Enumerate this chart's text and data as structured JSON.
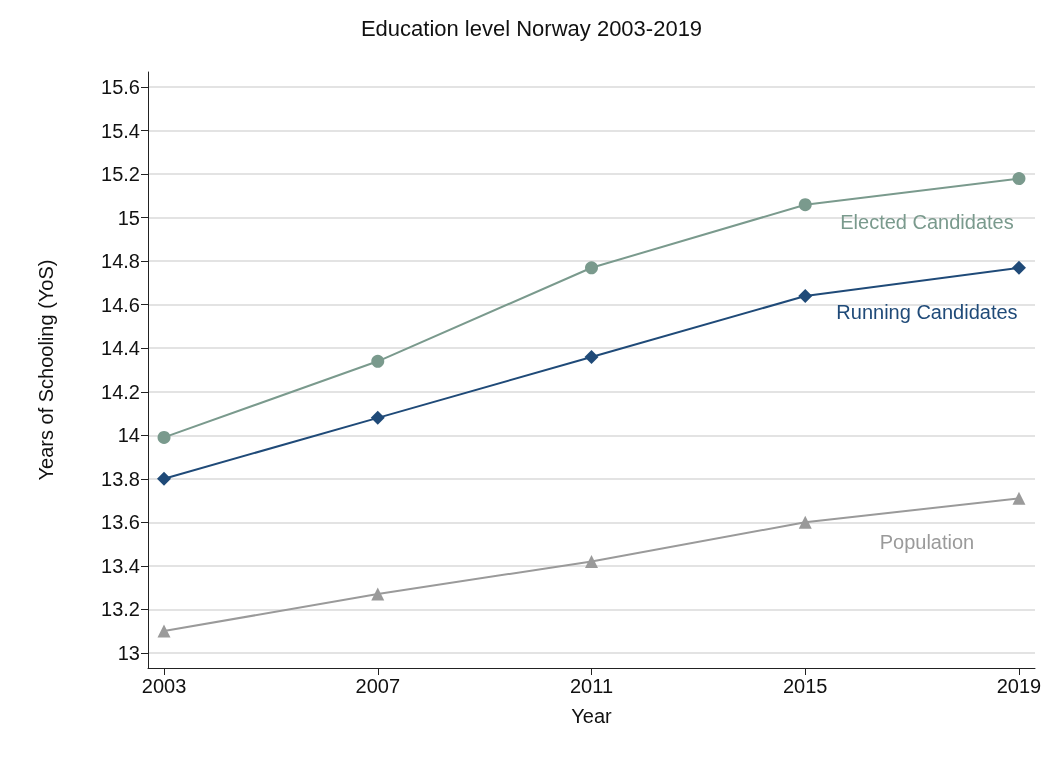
{
  "chart_data": {
    "type": "line",
    "title": "Education level Norway 2003-2019",
    "xlabel": "Year",
    "ylabel": "Years of Schooling (YoS)",
    "x": [
      2003,
      2007,
      2011,
      2015,
      2019
    ],
    "series": [
      {
        "name": "Elected Candidates",
        "color": "#7a9a8d",
        "marker": "circle",
        "values": [
          13.99,
          14.34,
          14.77,
          15.06,
          15.18
        ]
      },
      {
        "name": "Running Candidates",
        "color": "#1f4a78",
        "marker": "diamond",
        "values": [
          13.8,
          14.08,
          14.36,
          14.64,
          14.77
        ]
      },
      {
        "name": "Population",
        "color": "#9a9a9a",
        "marker": "triangle",
        "values": [
          13.1,
          13.27,
          13.42,
          13.6,
          13.71
        ]
      }
    ],
    "xlim": [
      2002.7,
      2019.3
    ],
    "xticks": [
      2003,
      2007,
      2011,
      2015,
      2019
    ],
    "ylim": [
      12.93,
      15.67
    ],
    "yticks": [
      13,
      13.2,
      13.4,
      13.6,
      13.8,
      14,
      14.2,
      14.4,
      14.6,
      14.8,
      15,
      15.2,
      15.4,
      15.6
    ],
    "grid": "y",
    "legend": false,
    "line_style": "solid"
  }
}
